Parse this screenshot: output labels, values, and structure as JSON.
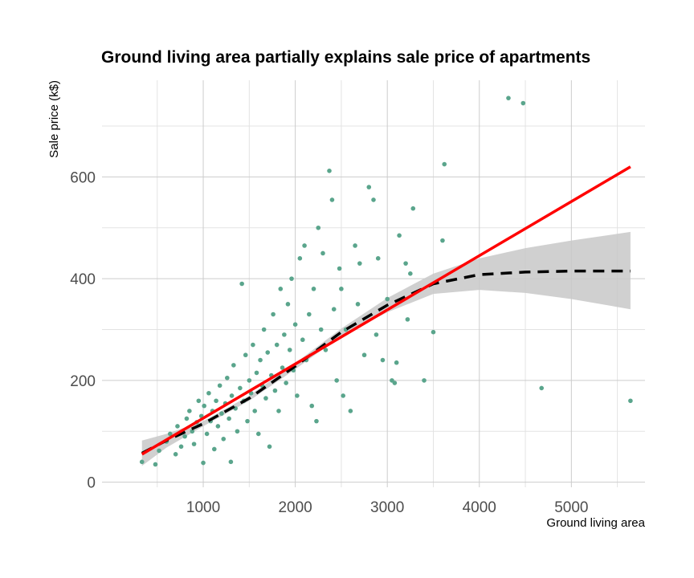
{
  "chart_data": {
    "type": "scatter",
    "title": "Ground living area partially explains sale price of apartments",
    "xlabel": "Ground living area",
    "ylabel": "Sale price (k$)",
    "xlim": [
      -100,
      5800
    ],
    "ylim": [
      -10,
      790
    ],
    "x_ticks": [
      1000,
      2000,
      3000,
      4000,
      5000
    ],
    "y_ticks": [
      0,
      200,
      400,
      600
    ],
    "grid": true,
    "point_color": "#5aa58c",
    "linear_fit_color": "#ff0000",
    "smooth_color": "#000000",
    "band_color": "#c8c8c8",
    "points": [
      [
        334,
        40
      ],
      [
        480,
        35
      ],
      [
        520,
        62
      ],
      [
        600,
        80
      ],
      [
        640,
        95
      ],
      [
        700,
        55
      ],
      [
        720,
        110
      ],
      [
        760,
        70
      ],
      [
        800,
        90
      ],
      [
        820,
        125
      ],
      [
        850,
        140
      ],
      [
        880,
        100
      ],
      [
        900,
        75
      ],
      [
        930,
        118
      ],
      [
        950,
        160
      ],
      [
        980,
        130
      ],
      [
        1000,
        38
      ],
      [
        1010,
        150
      ],
      [
        1040,
        95
      ],
      [
        1060,
        175
      ],
      [
        1080,
        120
      ],
      [
        1100,
        140
      ],
      [
        1120,
        65
      ],
      [
        1140,
        160
      ],
      [
        1160,
        110
      ],
      [
        1180,
        190
      ],
      [
        1200,
        135
      ],
      [
        1220,
        85
      ],
      [
        1240,
        155
      ],
      [
        1260,
        205
      ],
      [
        1280,
        125
      ],
      [
        1300,
        40
      ],
      [
        1310,
        170
      ],
      [
        1330,
        230
      ],
      [
        1350,
        145
      ],
      [
        1370,
        100
      ],
      [
        1400,
        185
      ],
      [
        1420,
        390
      ],
      [
        1440,
        160
      ],
      [
        1460,
        250
      ],
      [
        1480,
        120
      ],
      [
        1500,
        200
      ],
      [
        1520,
        175
      ],
      [
        1540,
        270
      ],
      [
        1560,
        140
      ],
      [
        1580,
        215
      ],
      [
        1600,
        95
      ],
      [
        1620,
        240
      ],
      [
        1640,
        190
      ],
      [
        1660,
        300
      ],
      [
        1680,
        165
      ],
      [
        1700,
        255
      ],
      [
        1720,
        70
      ],
      [
        1740,
        210
      ],
      [
        1760,
        330
      ],
      [
        1780,
        180
      ],
      [
        1800,
        270
      ],
      [
        1820,
        140
      ],
      [
        1840,
        380
      ],
      [
        1860,
        225
      ],
      [
        1880,
        290
      ],
      [
        1900,
        195
      ],
      [
        1920,
        350
      ],
      [
        1940,
        260
      ],
      [
        1960,
        400
      ],
      [
        1980,
        220
      ],
      [
        2000,
        310
      ],
      [
        2020,
        170
      ],
      [
        2050,
        440
      ],
      [
        2080,
        280
      ],
      [
        2100,
        465
      ],
      [
        2120,
        240
      ],
      [
        2150,
        330
      ],
      [
        2180,
        150
      ],
      [
        2200,
        380
      ],
      [
        2230,
        120
      ],
      [
        2250,
        500
      ],
      [
        2280,
        300
      ],
      [
        2300,
        450
      ],
      [
        2330,
        260
      ],
      [
        2370,
        612
      ],
      [
        2400,
        555
      ],
      [
        2420,
        340
      ],
      [
        2450,
        200
      ],
      [
        2480,
        420
      ],
      [
        2500,
        380
      ],
      [
        2520,
        170
      ],
      [
        2550,
        300
      ],
      [
        2600,
        140
      ],
      [
        2650,
        465
      ],
      [
        2680,
        350
      ],
      [
        2700,
        430
      ],
      [
        2750,
        250
      ],
      [
        2800,
        580
      ],
      [
        2850,
        555
      ],
      [
        2880,
        290
      ],
      [
        2900,
        440
      ],
      [
        2950,
        240
      ],
      [
        3000,
        360
      ],
      [
        3050,
        200
      ],
      [
        3080,
        195
      ],
      [
        3100,
        235
      ],
      [
        3130,
        485
      ],
      [
        3200,
        430
      ],
      [
        3220,
        320
      ],
      [
        3250,
        410
      ],
      [
        3280,
        538
      ],
      [
        3400,
        200
      ],
      [
        3500,
        295
      ],
      [
        3600,
        475
      ],
      [
        3620,
        625
      ],
      [
        4316,
        755
      ],
      [
        4476,
        745
      ],
      [
        4676,
        185
      ],
      [
        5642,
        160
      ]
    ],
    "linear_fit": {
      "x": [
        334,
        5642
      ],
      "y": [
        55,
        620
      ]
    },
    "smooth": {
      "x": [
        334,
        600,
        1000,
        1500,
        2000,
        2500,
        3000,
        3500,
        4000,
        4500,
        5000,
        5642
      ],
      "y": [
        57,
        82,
        115,
        165,
        228,
        295,
        348,
        390,
        408,
        413,
        415,
        415
      ],
      "band_upper": [
        82,
        95,
        120,
        170,
        234,
        302,
        362,
        410,
        440,
        460,
        475,
        492
      ],
      "band_lower": [
        32,
        68,
        110,
        160,
        222,
        288,
        334,
        370,
        378,
        372,
        360,
        340
      ]
    }
  }
}
